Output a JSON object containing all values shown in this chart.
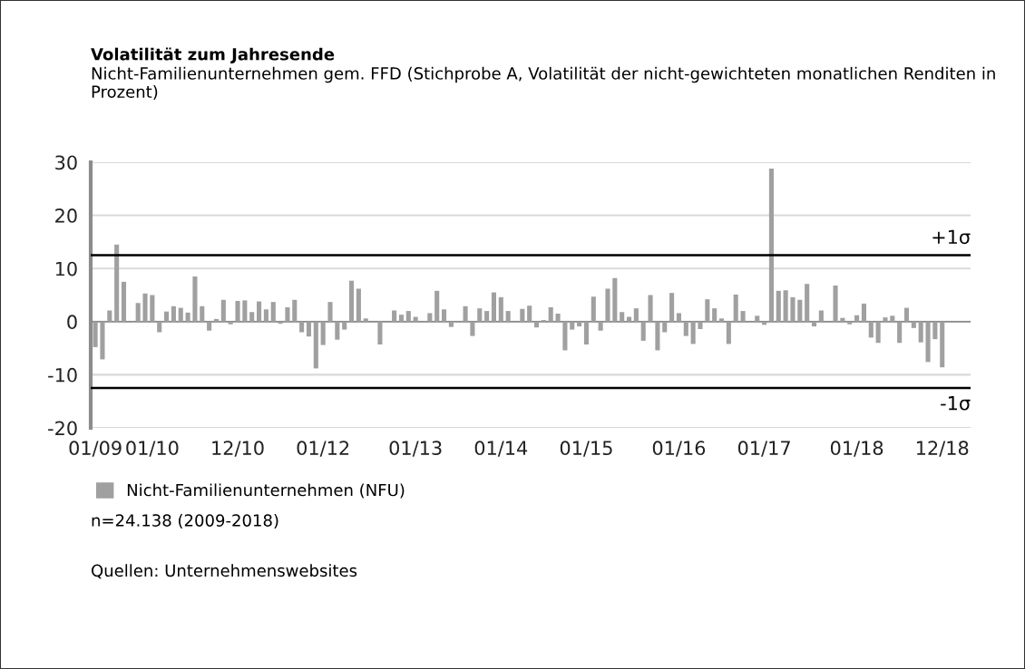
{
  "chart_data": {
    "type": "bar",
    "title": "Volatilität zum Jahresende",
    "subtitle": "Nicht-Familienunternehmen gem. FFD (Stichprobe A, Volatilität der nicht-gewichteten monatlichen Renditen in Prozent)",
    "categories": [
      "01/09",
      null,
      null,
      null,
      null,
      null,
      null,
      null,
      "01/10",
      null,
      null,
      null,
      null,
      null,
      null,
      null,
      null,
      null,
      null,
      null,
      "12/10",
      null,
      null,
      null,
      null,
      null,
      null,
      null,
      null,
      null,
      null,
      null,
      "01/12",
      null,
      null,
      null,
      null,
      null,
      null,
      null,
      null,
      null,
      null,
      null,
      null,
      "01/13",
      null,
      null,
      null,
      null,
      null,
      null,
      null,
      null,
      null,
      null,
      null,
      "01/14",
      null,
      null,
      null,
      null,
      null,
      null,
      null,
      null,
      null,
      null,
      null,
      "01/15",
      null,
      null,
      null,
      null,
      null,
      null,
      null,
      null,
      null,
      null,
      null,
      null,
      "01/16",
      null,
      null,
      null,
      null,
      null,
      null,
      null,
      null,
      null,
      null,
      null,
      "01/17",
      null,
      null,
      null,
      null,
      null,
      null,
      null,
      null,
      null,
      null,
      null,
      null,
      "01/18",
      null,
      null,
      null,
      null,
      null,
      null,
      null,
      null,
      null,
      null,
      null,
      "12/18"
    ],
    "series": [
      {
        "name": "Nicht-Familienunternehmen (NFU)",
        "color": "#a0a0a0",
        "values": [
          -4.8,
          -7.1,
          2.1,
          14.5,
          7.5,
          0,
          3.5,
          5.3,
          5.0,
          -2.0,
          1.9,
          2.9,
          2.6,
          1.7,
          8.5,
          2.9,
          -1.7,
          0.5,
          4.1,
          -0.5,
          3.9,
          4.0,
          1.8,
          3.8,
          2.3,
          3.7,
          -0.4,
          2.7,
          4.1,
          -2.0,
          -2.8,
          -8.8,
          -4.4,
          3.7,
          -3.4,
          -1.5,
          7.7,
          6.2,
          0.6,
          0,
          -4.3,
          0,
          2.1,
          1.3,
          2.0,
          0.9,
          0,
          1.6,
          5.8,
          2.3,
          -1.0,
          0,
          2.9,
          -2.7,
          2.5,
          2.0,
          5.5,
          4.6,
          2.0,
          0,
          2.4,
          3.0,
          -1.1,
          0.3,
          2.7,
          1.5,
          -5.4,
          -1.5,
          -0.9,
          -4.3,
          4.7,
          -1.7,
          6.2,
          8.2,
          1.8,
          0.9,
          2.5,
          -3.6,
          5.0,
          -5.4,
          -2.0,
          5.4,
          1.6,
          -2.7,
          -4.2,
          -1.4,
          4.2,
          2.5,
          0.6,
          -4.2,
          5.1,
          2.0,
          0,
          1.1,
          -0.6,
          28.8,
          5.8,
          5.9,
          4.6,
          4.1,
          7.1,
          -0.9,
          2.1,
          0,
          6.8,
          0.7,
          -0.5,
          1.2,
          3.4,
          -3.0,
          -4.0,
          0.8,
          1.1,
          -4.0,
          2.6,
          -1.2,
          -3.9,
          -7.6,
          -3.3,
          -8.6
        ]
      }
    ],
    "ylim": [
      -20,
      30
    ],
    "yticks": [
      -20,
      -10,
      0,
      10,
      20,
      30
    ],
    "grid": "y",
    "legend": "bottom",
    "ref_lines": [
      {
        "axis": "y",
        "value": 12.5,
        "label": "+1σ",
        "color": "#000000"
      },
      {
        "axis": "y",
        "value": -12.5,
        "label": "-1σ",
        "color": "#000000"
      }
    ],
    "annotations": [
      "n=24.138 (2009-2018)",
      "Quellen: Unternehmenswebsites"
    ]
  }
}
